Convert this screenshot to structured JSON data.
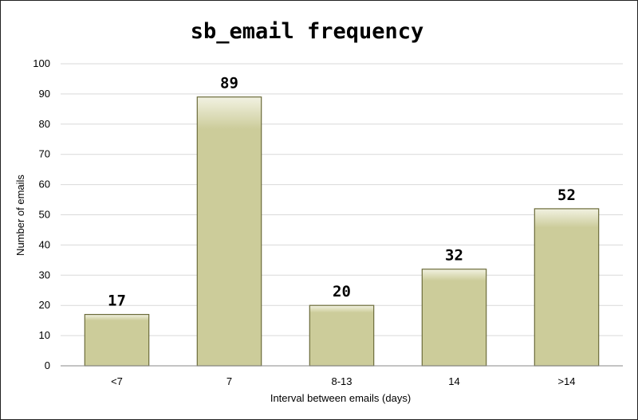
{
  "chart_data": {
    "type": "bar",
    "title": "sb_email frequency",
    "xlabel": "Interval between emails (days)",
    "ylabel": "Number of emails",
    "categories": [
      "<7",
      "7",
      "8-13",
      "14",
      ">14"
    ],
    "values": [
      17,
      89,
      20,
      32,
      52
    ],
    "ylim": [
      0,
      100
    ],
    "yticks": [
      0,
      10,
      20,
      30,
      40,
      50,
      60,
      70,
      80,
      90,
      100
    ],
    "grid": true,
    "legend": "none",
    "bar_color": "#cccc9a",
    "bar_highlight": "#f2f2e2",
    "bar_stroke": "#6b6b3a"
  }
}
